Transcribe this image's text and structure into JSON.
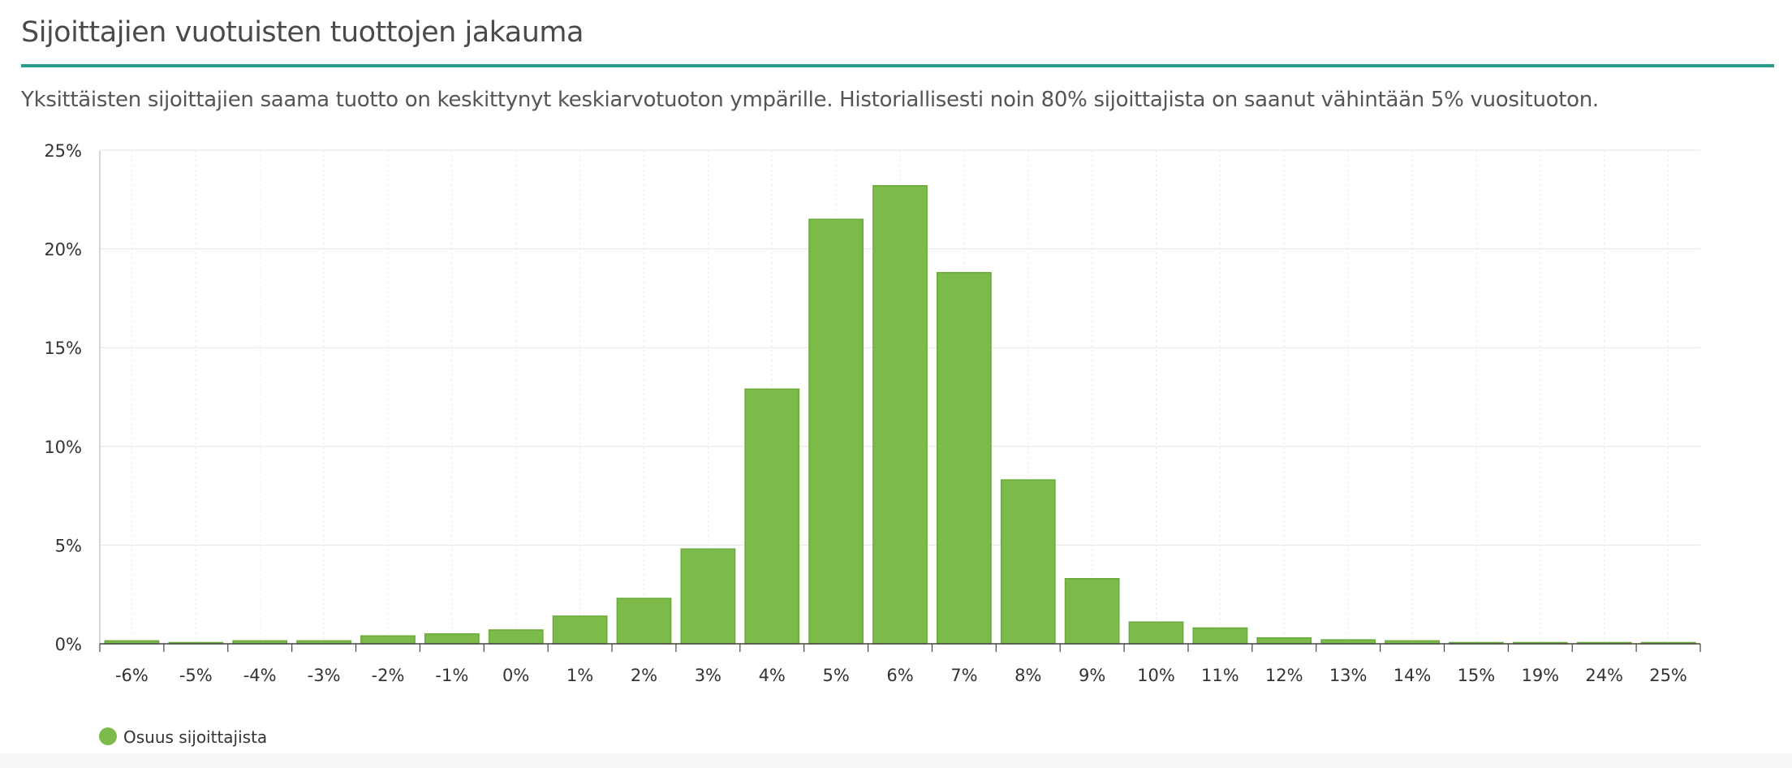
{
  "header": {
    "title": "Sijoittajien vuotuisten tuottojen jakauma",
    "subtitle": "Yksittäisten sijoittajien saama tuotto on keskittynyt keskiarvotuoton ympärille. Historiallisesti noin 80% sijoittajista on saanut vähintään 5% vuosituoton."
  },
  "colors": {
    "accent_rule": "#2a9d8f",
    "bar_fill": "#7cba4a",
    "bar_stroke": "#6aaa3a",
    "grid": "#e6e6e6"
  },
  "chart_data": {
    "type": "bar",
    "categories": [
      "-6%",
      "-5%",
      "-4%",
      "-3%",
      "-2%",
      "-1%",
      "0%",
      "1%",
      "2%",
      "3%",
      "4%",
      "5%",
      "6%",
      "7%",
      "8%",
      "9%",
      "10%",
      "11%",
      "12%",
      "13%",
      "14%",
      "15%",
      "19%",
      "24%",
      "25%"
    ],
    "series": [
      {
        "name": "Osuus sijoittajista",
        "values": [
          0.15,
          0.05,
          0.15,
          0.15,
          0.4,
          0.5,
          0.7,
          1.4,
          2.3,
          4.8,
          12.9,
          21.5,
          23.2,
          18.8,
          8.3,
          3.3,
          1.1,
          0.8,
          0.3,
          0.2,
          0.15,
          0.05,
          0.05,
          0.05,
          0.05
        ]
      }
    ],
    "yticks": [
      "0%",
      "5%",
      "10%",
      "15%",
      "20%",
      "25%"
    ],
    "ylim": [
      0,
      25
    ],
    "grid": true,
    "legend_position": "bottom-left"
  }
}
